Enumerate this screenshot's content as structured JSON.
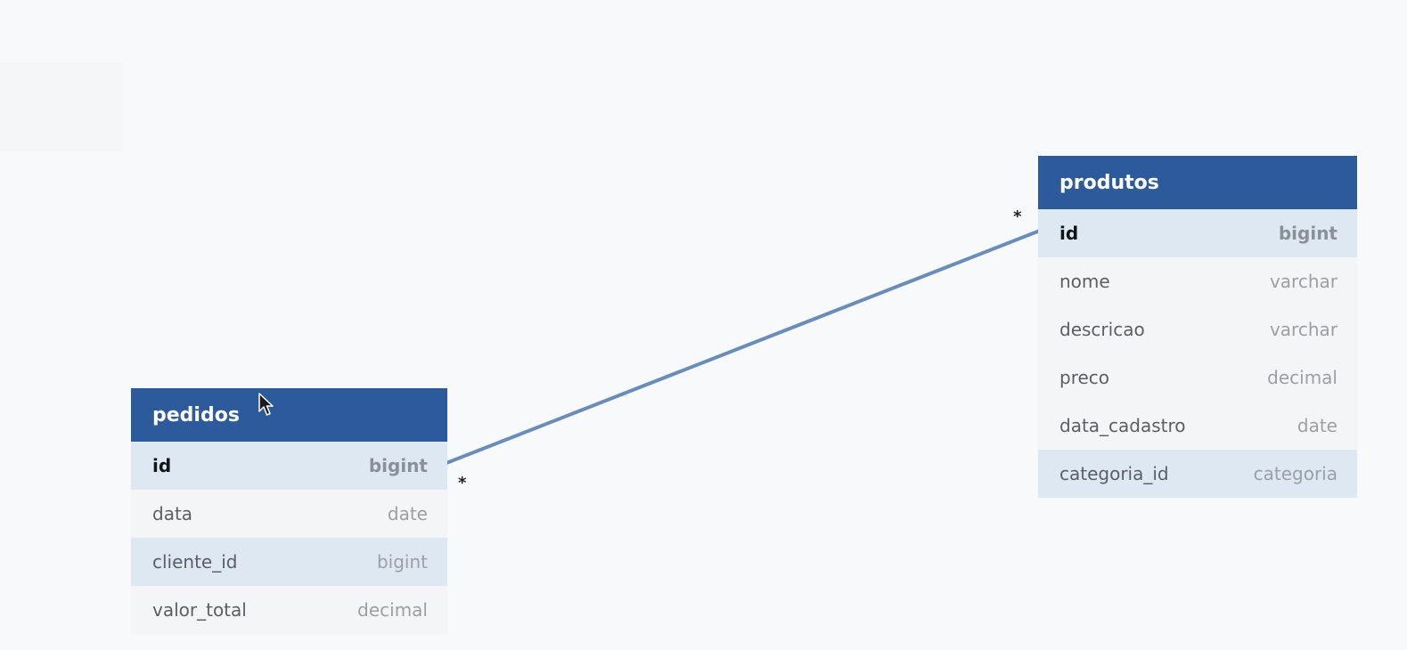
{
  "tables": [
    {
      "name": "pedidos",
      "columns": [
        {
          "name": "id",
          "type": "bigint",
          "key": "pk"
        },
        {
          "name": "data",
          "type": "date",
          "key": "none"
        },
        {
          "name": "cliente_id",
          "type": "bigint",
          "key": "fk"
        },
        {
          "name": "valor_total",
          "type": "decimal",
          "key": "none"
        }
      ]
    },
    {
      "name": "produtos",
      "columns": [
        {
          "name": "id",
          "type": "bigint",
          "key": "pk"
        },
        {
          "name": "nome",
          "type": "varchar",
          "key": "none"
        },
        {
          "name": "descricao",
          "type": "varchar",
          "key": "none"
        },
        {
          "name": "preco",
          "type": "decimal",
          "key": "none"
        },
        {
          "name": "data_cadastro",
          "type": "date",
          "key": "none"
        },
        {
          "name": "categoria_id",
          "type": "categoria",
          "key": "fk"
        }
      ]
    }
  ],
  "relationship": {
    "from_table": "pedidos",
    "from_column": "id",
    "from_multiplicity": "*",
    "to_table": "produtos",
    "to_column": "id",
    "to_multiplicity": "*"
  },
  "colors": {
    "header": "#2d5a9b",
    "key_row": "#dde8f3",
    "plain_row": "#f4f5f6",
    "connector": "#6a8cbb",
    "background": "#f8f9fa"
  }
}
